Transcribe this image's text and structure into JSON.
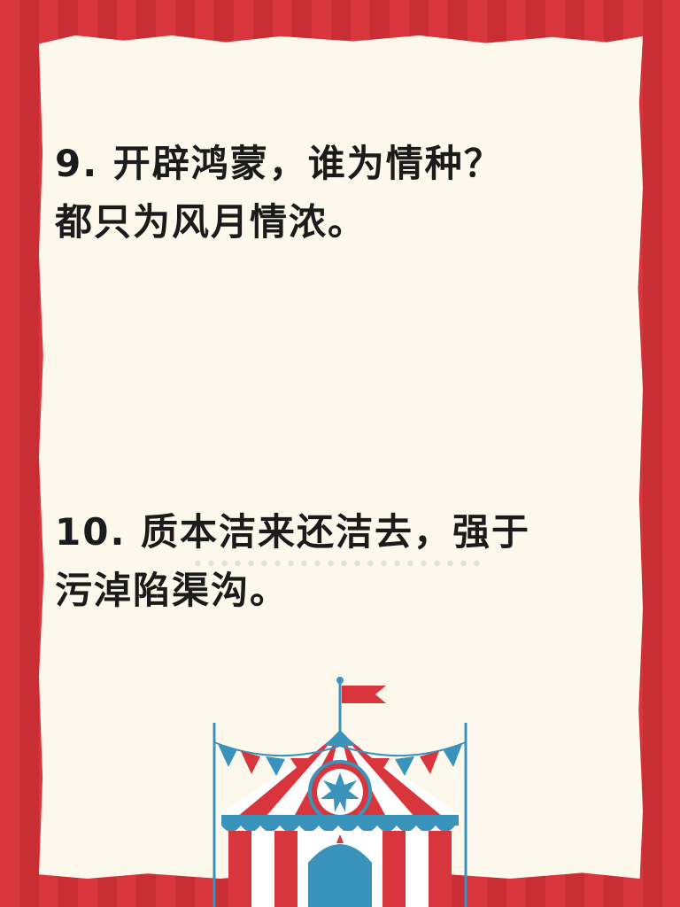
{
  "verses": [
    {
      "lines": [
        "9. 开辟鸿蒙，谁为情种？",
        "都只为风月情浓。"
      ]
    },
    {
      "lines": [
        "10. 质本洁来还洁去，强于",
        "污淖陷渠沟。"
      ]
    }
  ],
  "decoration": {
    "illustration": "circus-tent-icon",
    "colors": {
      "stripe_red": "#d8353c",
      "paper": "#fdf8ec",
      "tent_blue": "#3a93bb",
      "tent_red": "#d8353c",
      "text": "#1b1b1b"
    }
  }
}
